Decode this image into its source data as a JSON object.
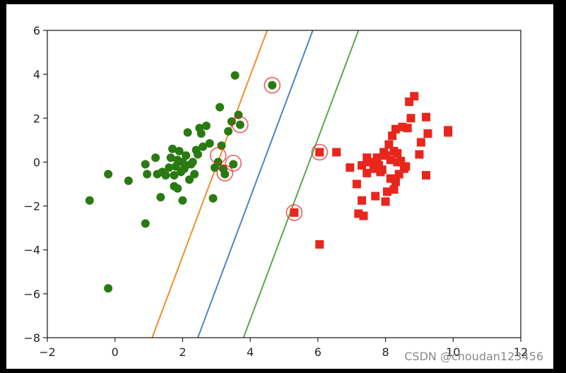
{
  "watermark": "CSDN @choudan123456",
  "chart_data": {
    "type": "scatter",
    "title": "",
    "xlabel": "",
    "ylabel": "",
    "xlim": [
      -2,
      12
    ],
    "ylim": [
      -8,
      6
    ],
    "xticks": [
      -2,
      0,
      2,
      4,
      6,
      8,
      10,
      12
    ],
    "yticks": [
      -8,
      -6,
      -4,
      -2,
      0,
      2,
      4,
      6
    ],
    "grid": false,
    "series": [
      {
        "marker": "circle",
        "color": "#2a7a12",
        "points": [
          [
            -0.75,
            -1.75
          ],
          [
            -0.2,
            -0.55
          ],
          [
            -0.2,
            -5.75
          ],
          [
            0.4,
            -0.85
          ],
          [
            0.9,
            -2.8
          ],
          [
            0.9,
            -0.1
          ],
          [
            0.95,
            -0.55
          ],
          [
            1.2,
            0.2
          ],
          [
            1.25,
            -0.55
          ],
          [
            1.35,
            -1.6
          ],
          [
            1.4,
            -0.45
          ],
          [
            1.5,
            -0.6
          ],
          [
            1.6,
            -0.25
          ],
          [
            1.65,
            0.2
          ],
          [
            1.7,
            0.6
          ],
          [
            1.75,
            -0.6
          ],
          [
            1.75,
            -1.1
          ],
          [
            1.8,
            -0.2
          ],
          [
            1.85,
            0.1
          ],
          [
            1.85,
            -1.2
          ],
          [
            1.9,
            0.5
          ],
          [
            1.95,
            -0.45
          ],
          [
            2.0,
            0.0
          ],
          [
            2.0,
            -1.75
          ],
          [
            2.05,
            -0.3
          ],
          [
            2.1,
            0.3
          ],
          [
            2.1,
            -0.15
          ],
          [
            2.15,
            1.35
          ],
          [
            2.2,
            -0.8
          ],
          [
            2.25,
            -0.1
          ],
          [
            2.3,
            0.0
          ],
          [
            2.35,
            -0.55
          ],
          [
            2.4,
            0.55
          ],
          [
            2.45,
            0.35
          ],
          [
            2.5,
            1.55
          ],
          [
            2.55,
            1.3
          ],
          [
            2.6,
            0.7
          ],
          [
            2.7,
            1.65
          ],
          [
            2.8,
            0.85
          ],
          [
            2.9,
            -1.65
          ],
          [
            2.95,
            -0.25
          ],
          [
            3.05,
            0.0
          ],
          [
            3.1,
            2.5
          ],
          [
            3.15,
            0.75
          ],
          [
            3.2,
            -0.3
          ],
          [
            3.25,
            -0.55
          ],
          [
            3.35,
            1.4
          ],
          [
            3.45,
            1.85
          ],
          [
            3.5,
            -0.1
          ],
          [
            3.55,
            3.95
          ],
          [
            3.65,
            2.15
          ],
          [
            3.7,
            1.7
          ],
          [
            4.65,
            3.5
          ]
        ]
      },
      {
        "marker": "square",
        "color": "#e8261c",
        "points": [
          [
            5.3,
            -2.3
          ],
          [
            6.05,
            0.45
          ],
          [
            6.05,
            -3.75
          ],
          [
            6.55,
            0.45
          ],
          [
            6.95,
            -0.25
          ],
          [
            7.15,
            -1.0
          ],
          [
            7.2,
            -2.35
          ],
          [
            7.3,
            -1.75
          ],
          [
            7.3,
            -0.15
          ],
          [
            7.35,
            -2.45
          ],
          [
            7.45,
            0.2
          ],
          [
            7.45,
            -0.5
          ],
          [
            7.55,
            0.0
          ],
          [
            7.65,
            -0.3
          ],
          [
            7.7,
            -1.55
          ],
          [
            7.75,
            0.2
          ],
          [
            7.8,
            -0.15
          ],
          [
            7.85,
            -0.45
          ],
          [
            7.9,
            -0.35
          ],
          [
            7.95,
            0.45
          ],
          [
            8.0,
            -1.8
          ],
          [
            8.0,
            0.3
          ],
          [
            8.05,
            -1.35
          ],
          [
            8.1,
            0.8
          ],
          [
            8.15,
            0.1
          ],
          [
            8.15,
            -0.75
          ],
          [
            8.2,
            1.2
          ],
          [
            8.25,
            -1.25
          ],
          [
            8.25,
            0.5
          ],
          [
            8.3,
            -0.9
          ],
          [
            8.3,
            1.5
          ],
          [
            8.35,
            0.0
          ],
          [
            8.35,
            0.4
          ],
          [
            8.4,
            -0.55
          ],
          [
            8.45,
            0.05
          ],
          [
            8.5,
            1.6
          ],
          [
            8.55,
            -0.3
          ],
          [
            8.6,
            -0.2
          ],
          [
            8.65,
            1.55
          ],
          [
            8.7,
            2.75
          ],
          [
            8.75,
            2.0
          ],
          [
            8.85,
            3.0
          ],
          [
            9.0,
            0.35
          ],
          [
            9.05,
            0.9
          ],
          [
            9.2,
            -0.6
          ],
          [
            9.2,
            2.05
          ],
          [
            9.25,
            1.3
          ],
          [
            9.85,
            1.45
          ],
          [
            9.85,
            1.35
          ]
        ]
      }
    ],
    "support_vectors": [
      [
        3.05,
        0.3
      ],
      [
        3.25,
        -0.5
      ],
      [
        3.5,
        -0.05
      ],
      [
        3.7,
        1.7
      ],
      [
        4.65,
        3.5
      ],
      [
        5.3,
        -2.3
      ],
      [
        6.05,
        0.45
      ]
    ],
    "lines": [
      {
        "color": "#f28e2b",
        "points": [
          [
            1.1,
            -8
          ],
          [
            4.5,
            6
          ]
        ]
      },
      {
        "color": "#4a86c0",
        "points": [
          [
            2.45,
            -8
          ],
          [
            5.85,
            6
          ]
        ]
      },
      {
        "color": "#5aa846",
        "points": [
          [
            3.8,
            -8
          ],
          [
            7.2,
            6
          ]
        ]
      }
    ],
    "support_ring_color": "#e8262a"
  }
}
